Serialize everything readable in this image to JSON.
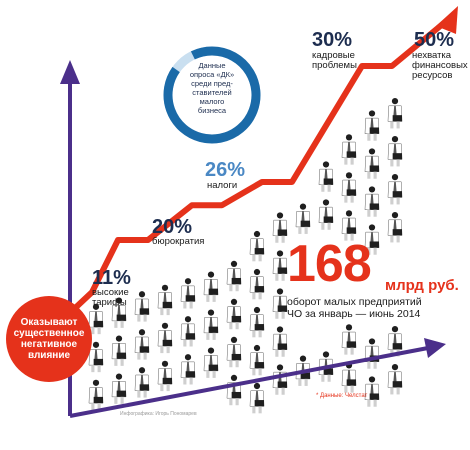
{
  "chart_data": {
    "type": "line",
    "title": "",
    "xlabel": "",
    "ylabel": "",
    "unit": "%",
    "categories": [
      "высокие тарифы",
      "бюрократия",
      "налоги",
      "кадровые проблемы",
      "нехватка финансовых ресурсов"
    ],
    "values": [
      11,
      20,
      26,
      30,
      50
    ],
    "value_labels": [
      "11%",
      "20%",
      "26%",
      "30%",
      "50%"
    ],
    "ylim": [
      0,
      55
    ],
    "grid": false,
    "legend": "none"
  },
  "survey_circle": {
    "text": "Данные\nопроса «ДК»\nсреди пред-\nставителей\nмалого\nбизнеса",
    "share": 0.92
  },
  "impact_circle": {
    "text": "Оказывают\nсущественное\nнегативное\nвлияние"
  },
  "turnover": {
    "number": "168",
    "unit": "млрд руб.",
    "caption": "оборот малых предприятий\nЧО за январь — июнь 2014"
  },
  "source": "* Данные: Челстат",
  "credit": "Инфографика: Игорь Пономарев",
  "colors": {
    "line": "#e5321b",
    "axis": "#4b2f8a",
    "pct_dark": "#1d2d4f",
    "pct_light": "#4a88c4",
    "circle": "#1a6aa8",
    "circle_track": "#c9dff0",
    "figure_jacket": "#1f1f1f",
    "figure_shirt": "#ffffff"
  }
}
